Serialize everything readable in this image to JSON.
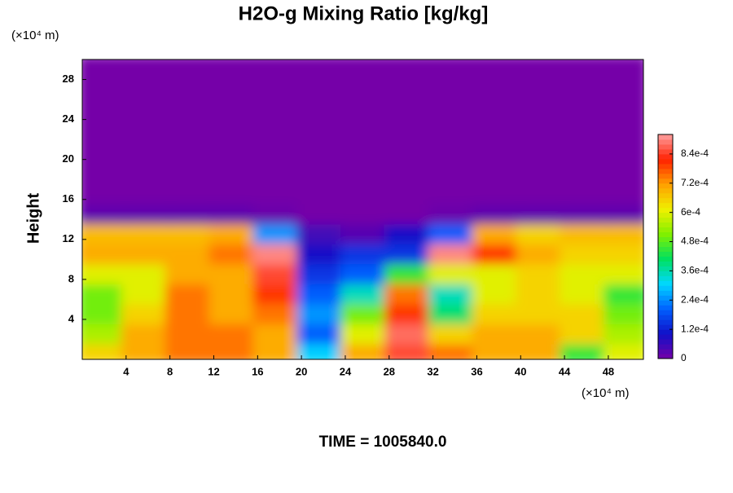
{
  "chart_data": {
    "type": "heatmap",
    "title": "H2O-g Mixing Ratio [kg/kg]",
    "y_unit": "(×10⁴ m)",
    "x_unit": "(×10⁴ m)",
    "ylabel": "Height",
    "footer": "TIME = 1005840.0",
    "xlim": [
      0,
      51.2
    ],
    "ylim": [
      0,
      30
    ],
    "xticks": [
      4,
      8,
      12,
      16,
      20,
      24,
      28,
      32,
      36,
      40,
      44,
      48
    ],
    "yticks": [
      4,
      8,
      12,
      16,
      20,
      24,
      28
    ],
    "x_edges": [
      0,
      4,
      8,
      12,
      16,
      20,
      24,
      28,
      32,
      36,
      40,
      44,
      48,
      51.2
    ],
    "y_edges": [
      0,
      2,
      4,
      6,
      8,
      10,
      12,
      14,
      16,
      18,
      20,
      22,
      24,
      26,
      28,
      30
    ],
    "z": [
      [
        0.00065,
        0.0007,
        0.00075,
        0.00075,
        0.0007,
        0.0003,
        0.0007,
        0.00085,
        0.00075,
        0.0007,
        0.0007,
        0.00045,
        0.0006
      ],
      [
        0.00055,
        0.0007,
        0.00075,
        0.00075,
        0.0007,
        0.0002,
        0.0006,
        0.00088,
        0.00065,
        0.0007,
        0.0007,
        0.00065,
        0.00055
      ],
      [
        0.0005,
        0.00065,
        0.00075,
        0.0007,
        0.00075,
        0.00025,
        0.0005,
        0.0008,
        0.0004,
        0.00065,
        0.00065,
        0.00065,
        0.0005
      ],
      [
        0.0005,
        0.0006,
        0.00075,
        0.0007,
        0.0008,
        0.0002,
        0.00035,
        0.00075,
        0.00035,
        0.0006,
        0.00065,
        0.0006,
        0.00045
      ],
      [
        0.0006,
        0.0006,
        0.0007,
        0.0007,
        0.00085,
        0.00015,
        0.0002,
        0.00045,
        0.0006,
        0.0006,
        0.00065,
        0.0006,
        0.0006
      ],
      [
        0.0007,
        0.0007,
        0.0007,
        0.00075,
        0.0009,
        0.0001,
        0.00015,
        0.00015,
        0.0009,
        0.0008,
        0.0007,
        0.00065,
        0.00065
      ],
      [
        0.00068,
        0.00068,
        0.00068,
        0.0007,
        0.00025,
        5e-05,
        3e-05,
        0.0001,
        0.0002,
        0.0007,
        0.00065,
        0.00068,
        0.00068
      ],
      [
        2e-05,
        2e-05,
        2e-05,
        2e-05,
        1e-05,
        0,
        0,
        0,
        1e-05,
        2e-05,
        2e-05,
        2e-05,
        2e-05
      ],
      [
        0,
        0,
        0,
        0,
        0,
        0,
        0,
        0,
        0,
        0,
        0,
        0,
        0
      ],
      [
        0,
        0,
        0,
        0,
        0,
        0,
        0,
        0,
        0,
        0,
        0,
        0,
        0
      ],
      [
        0,
        0,
        0,
        0,
        0,
        0,
        0,
        0,
        0,
        0,
        0,
        0,
        0
      ],
      [
        0,
        0,
        0,
        0,
        0,
        0,
        0,
        0,
        0,
        0,
        0,
        0,
        0
      ],
      [
        0,
        0,
        0,
        0,
        0,
        0,
        0,
        0,
        0,
        0,
        0,
        0,
        0
      ],
      [
        0,
        0,
        0,
        0,
        0,
        0,
        0,
        0,
        0,
        0,
        0,
        0,
        0
      ],
      [
        0,
        0,
        0,
        0,
        0,
        0,
        0,
        0,
        0,
        0,
        0,
        0,
        0
      ]
    ],
    "zlim": [
      0,
      0.00092
    ],
    "colors": [
      "#7400a8",
      "#1010c8",
      "#0060ff",
      "#00d8ff",
      "#00e060",
      "#80f000",
      "#f0f000",
      "#ffa000",
      "#ff2000",
      "#ffa0a0"
    ],
    "colorbar_ticks": [
      {
        "value": 0,
        "label": "0"
      },
      {
        "value": 0.00012,
        "label": "1.2e-4"
      },
      {
        "value": 0.00024,
        "label": "2.4e-4"
      },
      {
        "value": 0.00036,
        "label": "3.6e-4"
      },
      {
        "value": 0.00048,
        "label": "4.8e-4"
      },
      {
        "value": 0.0006,
        "label": "6e-4"
      },
      {
        "value": 0.00072,
        "label": "7.2e-4"
      },
      {
        "value": 0.00084,
        "label": "8.4e-4"
      }
    ]
  }
}
